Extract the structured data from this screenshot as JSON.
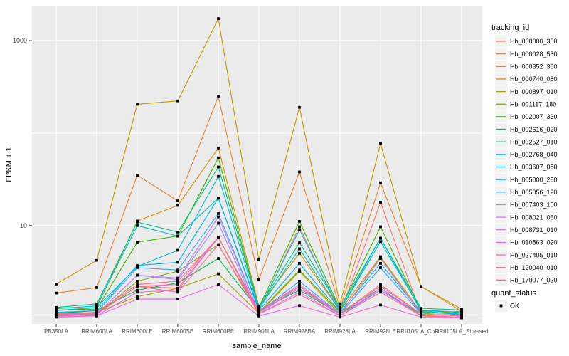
{
  "figure": {
    "background": "#FFFFFF",
    "panel_background": "#EBEBEB",
    "grid_color": "#FFFFFF",
    "axis_text_color": "#4D4D4D",
    "tick_color": "#333333",
    "legend_key_fill": "#F2F2F2",
    "point_color": "#000000"
  },
  "titles": {
    "ylabel": "FPKM + 1",
    "xlabel": "sample_name"
  },
  "legend": {
    "tracking_title": "tracking_id",
    "quant_title": "quant_status",
    "quant_items": [
      {
        "label": "OK",
        "marker": "black-square"
      }
    ]
  },
  "chart_data": {
    "type": "line",
    "title": "",
    "xlabel": "sample_name",
    "ylabel": "FPKM + 1",
    "y_scale": "log10",
    "ylim": [
      0.86,
      2400
    ],
    "grid": "on",
    "legend_position": "right",
    "point_marker": "filled-square",
    "y_ticks": [
      {
        "value": 1000,
        "label": "1000"
      },
      {
        "value": 10,
        "label": "10"
      }
    ],
    "y_gridlines": [
      1,
      10,
      100,
      1000
    ],
    "categories": [
      "PB350LA",
      "RRIM600LA",
      "RRIM600LE",
      "RRIM600SE",
      "RRIM600PE",
      "RRIM901LA",
      "RRIM928BA",
      "RRIM928LA",
      "RRIM928LE",
      "RRII105LA_Control",
      "RRII105LA_Stressed"
    ],
    "series": [
      {
        "name": "Hb_000000_300",
        "color": "#F8766D",
        "values": [
          1.1,
          1.12,
          2.2,
          2.1,
          7.4,
          1.2,
          9.7,
          1.12,
          17.8,
          1.1,
          1.05
        ]
      },
      {
        "name": "Hb_000028_550",
        "color": "#EA8331",
        "values": [
          1.86,
          2.13,
          35,
          18.5,
          250,
          2.6,
          38,
          1.27,
          29,
          2.2,
          1.18
        ]
      },
      {
        "name": "Hb_000352_360",
        "color": "#D89000",
        "values": [
          1.2,
          1.3,
          11.2,
          16.5,
          69,
          1.35,
          5.0,
          1.2,
          4.6,
          1.15,
          1.1
        ]
      },
      {
        "name": "Hb_000740_080",
        "color": "#C09B00",
        "values": [
          2.33,
          4.2,
          205,
          223,
          1730,
          4.3,
          190,
          1.4,
          77,
          2.18,
          1.25
        ]
      },
      {
        "name": "Hb_000897_010",
        "color": "#A3A500",
        "values": [
          1.08,
          1.15,
          1.7,
          2.1,
          3.0,
          1.12,
          3.2,
          1.1,
          4.5,
          1.1,
          1.19
        ]
      },
      {
        "name": "Hb_001117_180",
        "color": "#7CAE00",
        "values": [
          1.06,
          1.1,
          2.5,
          3.2,
          6.2,
          1.15,
          3.3,
          1.15,
          2.1,
          1.06,
          1.1
        ]
      },
      {
        "name": "Hb_002007_330",
        "color": "#39B600",
        "values": [
          1.22,
          1.25,
          6.6,
          7.7,
          54,
          1.3,
          11.1,
          1.25,
          9.7,
          1.2,
          1.15
        ]
      },
      {
        "name": "Hb_002616_020",
        "color": "#00BB4E",
        "values": [
          1.12,
          1.2,
          2.0,
          2.4,
          4.4,
          1.2,
          2.0,
          1.1,
          2.0,
          1.1,
          1.05
        ]
      },
      {
        "name": "Hb_002527_010",
        "color": "#00C087",
        "values": [
          1.3,
          1.42,
          10.9,
          8.5,
          43,
          1.3,
          6.5,
          1.3,
          7.3,
          1.27,
          1.22
        ]
      },
      {
        "name": "Hb_002768_040",
        "color": "#00C0B8",
        "values": [
          1.26,
          1.35,
          10.0,
          7.7,
          19.8,
          1.25,
          5.6,
          1.2,
          6.7,
          1.22,
          1.15
        ]
      },
      {
        "name": "Hb_003607_080",
        "color": "#00BCD8",
        "values": [
          1.2,
          1.3,
          3.6,
          5.4,
          34,
          1.25,
          9.0,
          1.2,
          7.3,
          1.18,
          1.1
        ]
      },
      {
        "name": "Hb_005000_280",
        "color": "#00B0F6",
        "values": [
          1.15,
          1.2,
          3.7,
          4.0,
          19.8,
          1.2,
          3.9,
          1.15,
          3.9,
          1.15,
          1.1
        ]
      },
      {
        "name": "Hb_005056_120",
        "color": "#35A2FF",
        "values": [
          1.1,
          1.15,
          3.5,
          3.3,
          13.5,
          1.15,
          2.5,
          1.1,
          3.5,
          1.1,
          1.05
        ]
      },
      {
        "name": "Hb_007403_100",
        "color": "#9590FF",
        "values": [
          1.05,
          1.1,
          2.9,
          2.6,
          10.6,
          1.1,
          2.2,
          1.05,
          2.1,
          1.05,
          1.02
        ]
      },
      {
        "name": "Hb_008021_050",
        "color": "#C77CFF",
        "values": [
          1.1,
          1.1,
          2.9,
          2.7,
          12.4,
          1.15,
          2.3,
          1.1,
          4.4,
          1.1,
          1.05
        ]
      },
      {
        "name": "Hb_008731_010",
        "color": "#E76BF3",
        "values": [
          1.04,
          1.06,
          1.9,
          2.0,
          7.5,
          1.1,
          1.9,
          1.05,
          2.0,
          1.05,
          1.02
        ]
      },
      {
        "name": "Hb_010863_020",
        "color": "#FA62DB",
        "values": [
          1.02,
          1.05,
          1.6,
          1.6,
          2.3,
          1.05,
          1.36,
          1.02,
          1.38,
          1.02,
          1.0
        ]
      },
      {
        "name": "Hb_027405_010",
        "color": "#FF62BC",
        "values": [
          1.1,
          1.1,
          2.2,
          2.3,
          7.5,
          1.15,
          2.1,
          1.1,
          2.2,
          1.1,
          1.05
        ]
      },
      {
        "name": "Hb_120040_010",
        "color": "#FF6A98",
        "values": [
          1.06,
          1.1,
          2.2,
          1.9,
          6.2,
          1.1,
          1.8,
          1.05,
          1.9,
          1.05,
          1.02
        ]
      },
      {
        "name": "Hb_170077_020",
        "color": "#FC7178",
        "values": [
          1.12,
          1.15,
          2.3,
          2.5,
          7.4,
          1.2,
          2.2,
          1.1,
          2.3,
          1.1,
          1.05
        ]
      }
    ]
  }
}
